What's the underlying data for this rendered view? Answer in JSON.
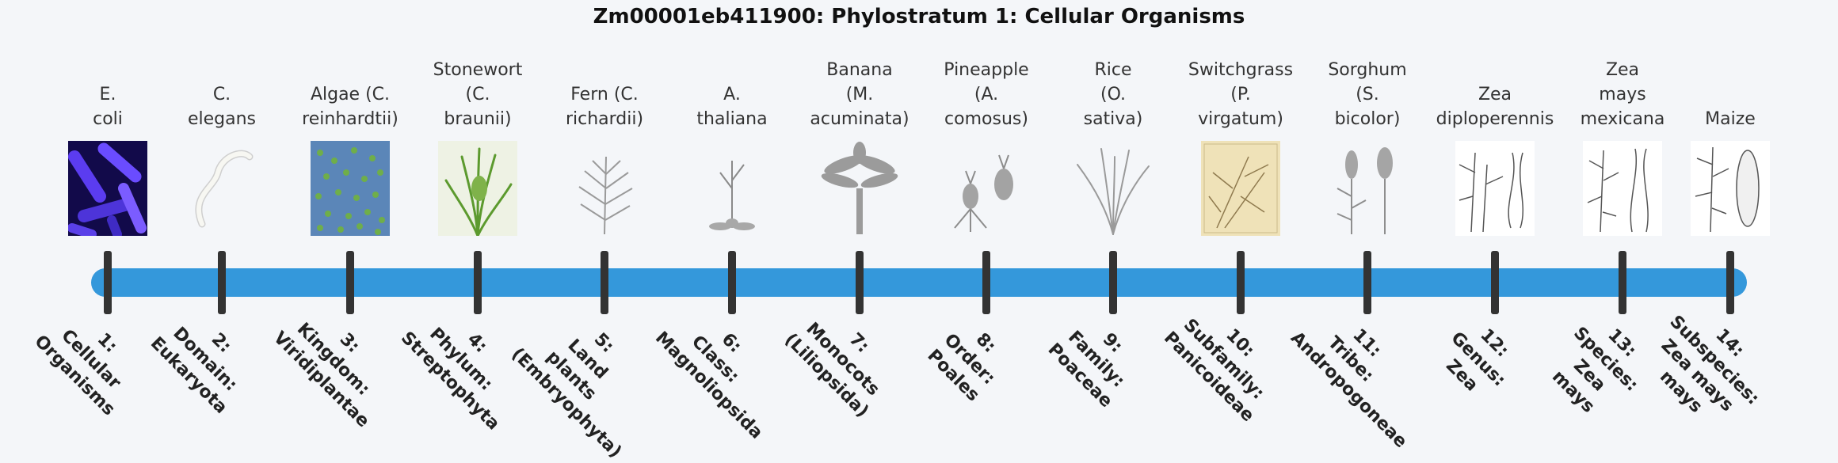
{
  "title": "Zm00001eb411900: Phylostratum 1: Cellular Organisms",
  "colors": {
    "track": "#3498db",
    "tick": "#333333",
    "background": "#f4f6f9"
  },
  "strata": [
    {
      "organism": [
        "E.",
        "coli"
      ],
      "level": [
        "1:",
        "Cellular",
        "Organisms"
      ],
      "image": "e-coli-image"
    },
    {
      "organism": [
        "C.",
        "elegans"
      ],
      "level": [
        "2:",
        "Domain:",
        "Eukaryota"
      ],
      "image": "c-elegans-image"
    },
    {
      "organism": [
        "Algae (C.",
        "reinhardtii)"
      ],
      "level": [
        "3:",
        "Kingdom:",
        "Viridiplantae"
      ],
      "image": "algae-image"
    },
    {
      "organism": [
        "Stonewort",
        "(C.",
        "braunii)"
      ],
      "level": [
        "4:",
        "Phylum:",
        "Streptophyta"
      ],
      "image": "stonewort-image"
    },
    {
      "organism": [
        "Fern (C.",
        "richardii)"
      ],
      "level": [
        "5:",
        "Land plants",
        "(Embryophyta)"
      ],
      "image": "fern-image"
    },
    {
      "organism": [
        "A.",
        "thaliana"
      ],
      "level": [
        "6:",
        "Class:",
        "Magnoliopsida"
      ],
      "image": "a-thaliana-image"
    },
    {
      "organism": [
        "Banana",
        "(M.",
        "acuminata)"
      ],
      "level": [
        "7:",
        "Monocots",
        "(Liliopsida)"
      ],
      "image": "banana-image"
    },
    {
      "organism": [
        "Pineapple",
        "(A.",
        "comosus)"
      ],
      "level": [
        "8:",
        "Order:",
        "Poales"
      ],
      "image": "pineapple-image"
    },
    {
      "organism": [
        "Rice",
        "(O.",
        "sativa)"
      ],
      "level": [
        "9:",
        "Family:",
        "Poaceae"
      ],
      "image": "rice-image"
    },
    {
      "organism": [
        "Switchgrass",
        "(P.",
        "virgatum)"
      ],
      "level": [
        "10:",
        "Subfamily:",
        "Panicoideae"
      ],
      "image": "switchgrass-image"
    },
    {
      "organism": [
        "Sorghum",
        "(S.",
        "bicolor)"
      ],
      "level": [
        "11:",
        "Tribe:",
        "Andropogoneae"
      ],
      "image": "sorghum-image"
    },
    {
      "organism": [
        "Zea",
        "diploperennis"
      ],
      "level": [
        "12:",
        "Genus:",
        "Zea"
      ],
      "image": "zea-diploperennis-image"
    },
    {
      "organism": [
        "Zea",
        "mays",
        "mexicana"
      ],
      "level": [
        "13:",
        "Species:",
        "Zea",
        "mays"
      ],
      "image": "zea-mays-mexicana-image"
    },
    {
      "organism": [
        "Maize"
      ],
      "level": [
        "14:",
        "Subspecies:",
        "Zea mays",
        "mays"
      ],
      "image": "maize-image"
    }
  ]
}
